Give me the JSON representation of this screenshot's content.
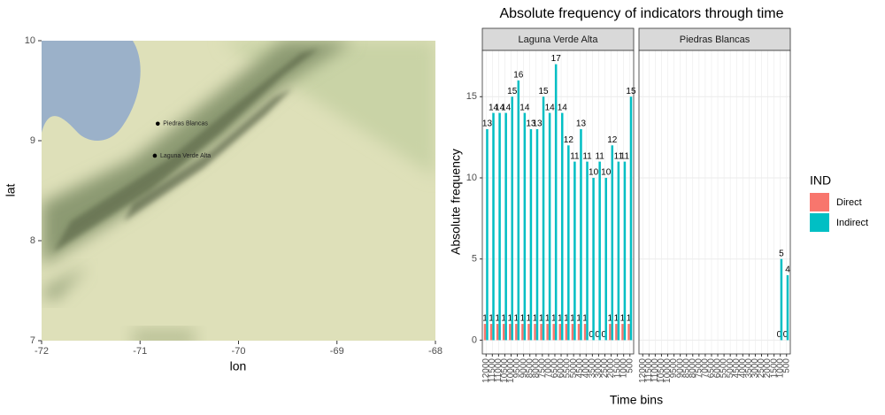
{
  "chart_data": [
    {
      "type": "map",
      "x_label": "lon",
      "y_label": "lat",
      "xlim": [
        -72,
        -68
      ],
      "ylim": [
        7,
        10
      ],
      "xticks": [
        -72,
        -71,
        -70,
        -69,
        -68
      ],
      "yticks": [
        7,
        8,
        9,
        10
      ],
      "labels": [
        "Piedras Blancas",
        "Laguna Verde Alta"
      ],
      "x": [
        -70.82,
        -70.85
      ],
      "values": [
        9.17,
        8.85
      ]
    },
    {
      "type": "bar",
      "title": "Absolute frequency of indicators through time",
      "facets": [
        "Laguna Verde Alta",
        "Piedras Blancas"
      ],
      "x_label": "Time bins",
      "y_label": "Absolute frequency",
      "legend_title": "IND",
      "categories": [
        "12000",
        "11500",
        "11000",
        "10500",
        "10000",
        "9500",
        "9000",
        "8500",
        "8000",
        "7500",
        "7000",
        "6500",
        "6000",
        "5500",
        "5000",
        "4500",
        "4000",
        "3500",
        "3000",
        "2500",
        "2000",
        "1500",
        "1000",
        "500"
      ],
      "ylim": [
        -0.85,
        17.85
      ],
      "yticks": [
        0,
        5,
        10,
        15
      ],
      "grid": true,
      "series": [
        {
          "name": "Direct",
          "color": "#F8766D",
          "values": [
            [
              1,
              1,
              1,
              1,
              1,
              1,
              1,
              1,
              1,
              1,
              1,
              1,
              1,
              1,
              1,
              1,
              1,
              0,
              0,
              0,
              1,
              1,
              1,
              1
            ],
            [
              null,
              null,
              null,
              null,
              null,
              null,
              null,
              null,
              null,
              null,
              null,
              null,
              null,
              null,
              null,
              null,
              null,
              null,
              null,
              null,
              null,
              null,
              0,
              0
            ]
          ]
        },
        {
          "name": "Indirect",
          "color": "#00BFC4",
          "values": [
            [
              13,
              14,
              14,
              14,
              15,
              16,
              14,
              13,
              13,
              15,
              14,
              17,
              14,
              12,
              11,
              13,
              11,
              10,
              11,
              10,
              12,
              11,
              11,
              15
            ],
            [
              null,
              null,
              null,
              null,
              null,
              null,
              null,
              null,
              null,
              null,
              null,
              null,
              null,
              null,
              null,
              null,
              null,
              null,
              null,
              null,
              null,
              null,
              5,
              4
            ]
          ]
        }
      ]
    }
  ]
}
